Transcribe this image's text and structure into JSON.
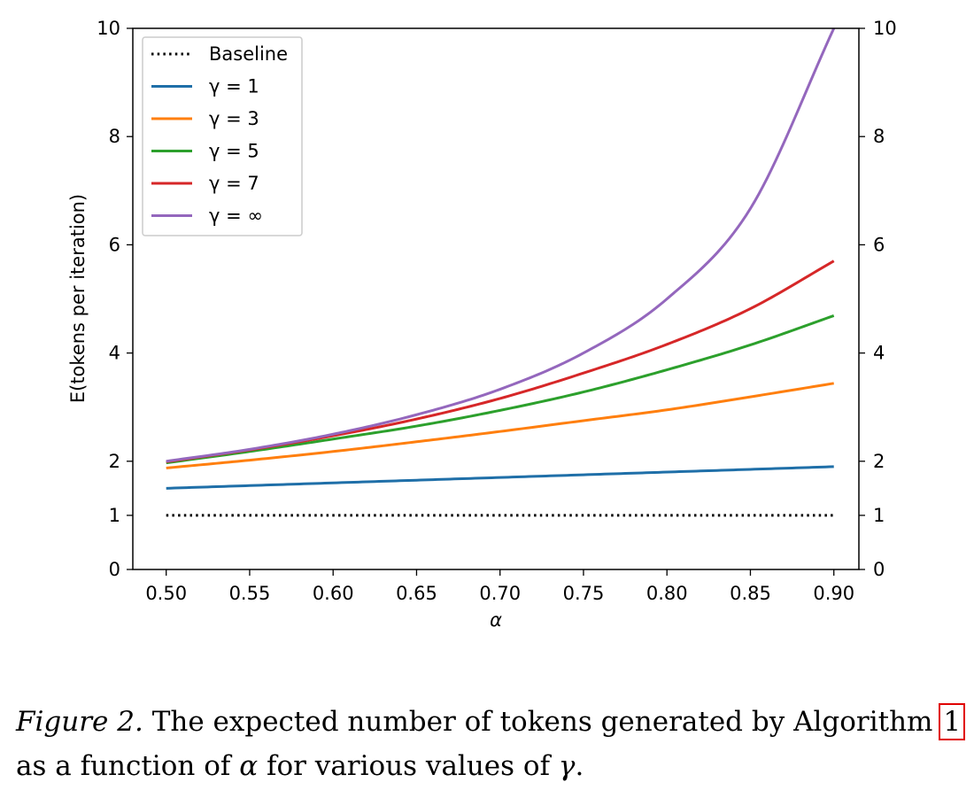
{
  "chart_data": {
    "type": "line",
    "title": "",
    "xlabel": "α",
    "ylabel": "E(tokens per iteration)",
    "xlim": [
      0.48,
      0.915
    ],
    "ylim": [
      0,
      10
    ],
    "x_ticks": [
      "0.50",
      "0.55",
      "0.60",
      "0.65",
      "0.70",
      "0.75",
      "0.80",
      "0.85",
      "0.90"
    ],
    "y_ticks": [
      "0",
      "1",
      "2",
      "4",
      "6",
      "8",
      "10"
    ],
    "y_ticks_right": [
      "0",
      "1",
      "2",
      "4",
      "6",
      "8",
      "10"
    ],
    "grid": false,
    "legend_position": "top-left",
    "x": [
      0.5,
      0.55,
      0.6,
      0.65,
      0.7,
      0.75,
      0.8,
      0.85,
      0.9
    ],
    "series": [
      {
        "name": "Baseline",
        "color": "#000000",
        "style": "dotted",
        "values": [
          1,
          1,
          1,
          1,
          1,
          1,
          1,
          1,
          1
        ]
      },
      {
        "name": "γ = 1",
        "color": "#1f6fa8",
        "style": "solid",
        "values": [
          1.5,
          1.55,
          1.6,
          1.65,
          1.7,
          1.75,
          1.8,
          1.85,
          1.9
        ]
      },
      {
        "name": "γ = 3",
        "color": "#ff7f0e",
        "style": "solid",
        "values": [
          1.875,
          2.02,
          2.18,
          2.36,
          2.55,
          2.75,
          2.95,
          3.19,
          3.44
        ]
      },
      {
        "name": "γ = 5",
        "color": "#2ca02c",
        "style": "solid",
        "values": [
          1.97,
          2.18,
          2.41,
          2.65,
          2.94,
          3.28,
          3.69,
          4.15,
          4.69
        ]
      },
      {
        "name": "γ = 7",
        "color": "#d62728",
        "style": "solid",
        "values": [
          1.99,
          2.21,
          2.47,
          2.78,
          3.16,
          3.63,
          4.16,
          4.82,
          5.7
        ]
      },
      {
        "name": "γ = ∞",
        "color": "#9467bd",
        "style": "solid",
        "values": [
          2.0,
          2.22,
          2.5,
          2.86,
          3.33,
          4.0,
          5.0,
          6.67,
          10.0
        ]
      }
    ]
  },
  "caption": {
    "figure_label": "Figure 2.",
    "text_1": " The expected number of tokens generated by Algorithm ",
    "ref": "1",
    "text_2": " as a function of ",
    "alpha": "α",
    "text_3": " for various values of ",
    "gamma": "γ",
    "text_4": "."
  }
}
